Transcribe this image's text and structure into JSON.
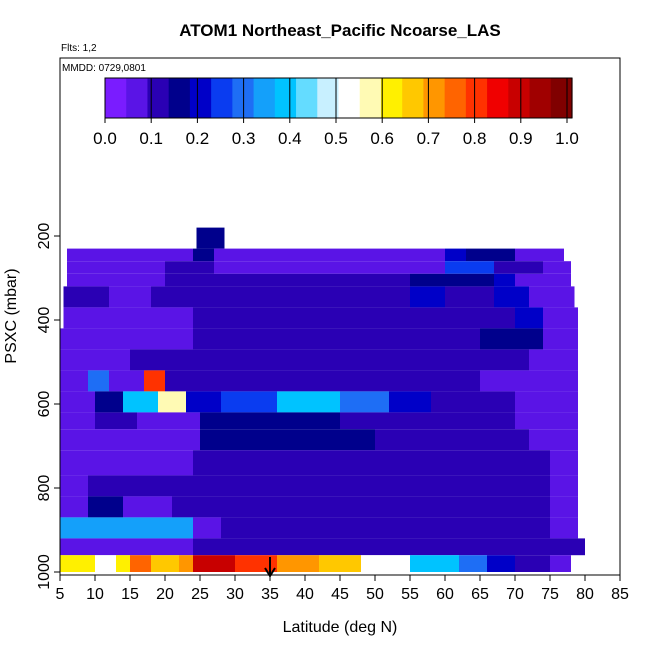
{
  "chart_data": {
    "type": "heatmap",
    "title": "ATOM1 Northeast_Pacific Ncoarse_LAS",
    "annotations": [
      "Flts: 1,2",
      "MMDD: 0729,0801"
    ],
    "xlabel": "Latitude (deg N)",
    "ylabel": "PSXC (mbar)",
    "xlim": [
      5,
      85
    ],
    "ylim": [
      1000,
      100
    ],
    "x_ticks": [
      5,
      10,
      15,
      20,
      25,
      30,
      35,
      40,
      45,
      50,
      55,
      60,
      65,
      70,
      75,
      80,
      85
    ],
    "y_ticks": [
      200,
      400,
      600,
      800,
      1000
    ],
    "colorbar": {
      "ticks": [
        "0.0",
        "0.1",
        "0.2",
        "0.3",
        "0.4",
        "0.5",
        "0.6",
        "0.7",
        "0.8",
        "0.9",
        "1.0"
      ],
      "colors": [
        "#7a1cff",
        "#5a14e6",
        "#2a00b4",
        "#00008c",
        "#0000c8",
        "#0a3cf0",
        "#1e6ef5",
        "#14a0fa",
        "#00c3ff",
        "#64dcff",
        "#c8f0ff",
        "#ffffff",
        "#fffab4",
        "#fff000",
        "#ffc800",
        "#ff9600",
        "#ff6400",
        "#ff3200",
        "#f00000",
        "#c80000",
        "#a00000",
        "#800000"
      ]
    },
    "marker_latitude": 35,
    "bins_pressure": [
      {
        "p_top": 180,
        "p_bottom": 230,
        "segments": [
          [
            24.5,
            28.5,
            0.15
          ]
        ]
      },
      {
        "p_top": 230,
        "p_bottom": 260,
        "segments": [
          [
            6,
            24,
            0.03
          ],
          [
            24,
            27,
            0.12
          ],
          [
            27,
            60,
            0.05
          ],
          [
            60,
            63,
            0.2
          ],
          [
            63,
            70,
            0.15
          ],
          [
            70,
            77,
            0.05
          ]
        ]
      },
      {
        "p_top": 260,
        "p_bottom": 290,
        "segments": [
          [
            6,
            20,
            0.04
          ],
          [
            20,
            27,
            0.1
          ],
          [
            27,
            60,
            0.05
          ],
          [
            60,
            67,
            0.22
          ],
          [
            67,
            74,
            0.1
          ],
          [
            74,
            78,
            0.04
          ]
        ]
      },
      {
        "p_top": 290,
        "p_bottom": 320,
        "segments": [
          [
            6,
            20,
            0.05
          ],
          [
            20,
            35,
            0.1
          ],
          [
            35,
            55,
            0.1
          ],
          [
            55,
            67,
            0.14
          ],
          [
            67,
            70,
            0.2
          ],
          [
            70,
            78,
            0.05
          ]
        ]
      },
      {
        "p_top": 320,
        "p_bottom": 370,
        "segments": [
          [
            5.5,
            12,
            0.08
          ],
          [
            12,
            18,
            0.05
          ],
          [
            18,
            27,
            0.08
          ],
          [
            27,
            55,
            0.09
          ],
          [
            55,
            60,
            0.2
          ],
          [
            60,
            67,
            0.09
          ],
          [
            67,
            72,
            0.2
          ],
          [
            72,
            78.5,
            0.05
          ]
        ]
      },
      {
        "p_top": 370,
        "p_bottom": 420,
        "segments": [
          [
            5.5,
            24,
            0.05
          ],
          [
            24,
            60,
            0.08
          ],
          [
            60,
            70,
            0.1
          ],
          [
            70,
            74,
            0.2
          ],
          [
            74,
            79,
            0.05
          ]
        ]
      },
      {
        "p_top": 420,
        "p_bottom": 470,
        "segments": [
          [
            5,
            24,
            0.04
          ],
          [
            24,
            40,
            0.08
          ],
          [
            40,
            65,
            0.08
          ],
          [
            65,
            74,
            0.12
          ],
          [
            74,
            79,
            0.05
          ]
        ]
      },
      {
        "p_top": 470,
        "p_bottom": 520,
        "segments": [
          [
            5,
            15,
            0.03
          ],
          [
            15,
            25,
            0.09
          ],
          [
            25,
            65,
            0.1
          ],
          [
            65,
            72,
            0.09
          ],
          [
            72,
            79,
            0.04
          ]
        ]
      },
      {
        "p_top": 520,
        "p_bottom": 570,
        "segments": [
          [
            5,
            9,
            0.03
          ],
          [
            9,
            12,
            0.3
          ],
          [
            12,
            17,
            0.05
          ],
          [
            17,
            20,
            0.8
          ],
          [
            20,
            25,
            0.1
          ],
          [
            25,
            65,
            0.09
          ],
          [
            65,
            74,
            0.05
          ],
          [
            74,
            79,
            0.04
          ]
        ]
      },
      {
        "p_top": 570,
        "p_bottom": 620,
        "segments": [
          [
            5,
            10,
            0.05
          ],
          [
            10,
            14,
            0.15
          ],
          [
            14,
            19,
            0.38
          ],
          [
            19,
            23,
            0.55
          ],
          [
            23,
            28,
            0.2
          ],
          [
            28,
            36,
            0.25
          ],
          [
            36,
            45,
            0.38
          ],
          [
            45,
            52,
            0.28
          ],
          [
            52,
            58,
            0.2
          ],
          [
            58,
            70,
            0.1
          ],
          [
            70,
            79,
            0.05
          ]
        ]
      },
      {
        "p_top": 620,
        "p_bottom": 660,
        "segments": [
          [
            5,
            10,
            0.04
          ],
          [
            10,
            16,
            0.1
          ],
          [
            16,
            25,
            0.05
          ],
          [
            25,
            45,
            0.15
          ],
          [
            45,
            60,
            0.09
          ],
          [
            60,
            70,
            0.09
          ],
          [
            70,
            79,
            0.05
          ]
        ]
      },
      {
        "p_top": 660,
        "p_bottom": 710,
        "segments": [
          [
            5,
            25,
            0.04
          ],
          [
            25,
            50,
            0.15
          ],
          [
            50,
            72,
            0.09
          ],
          [
            72,
            79,
            0.05
          ]
        ]
      },
      {
        "p_top": 710,
        "p_bottom": 770,
        "segments": [
          [
            5,
            24,
            0.04
          ],
          [
            24,
            75,
            0.09
          ],
          [
            75,
            79,
            0.05
          ]
        ]
      },
      {
        "p_top": 770,
        "p_bottom": 820,
        "segments": [
          [
            5,
            9,
            0.04
          ],
          [
            9,
            24,
            0.09
          ],
          [
            24,
            75,
            0.09
          ],
          [
            75,
            79,
            0.04
          ]
        ]
      },
      {
        "p_top": 820,
        "p_bottom": 870,
        "segments": [
          [
            5,
            9,
            0.05
          ],
          [
            9,
            14,
            0.14
          ],
          [
            14,
            21,
            0.05
          ],
          [
            21,
            24,
            0.1
          ],
          [
            24,
            75,
            0.09
          ],
          [
            75,
            79,
            0.04
          ]
        ]
      },
      {
        "p_top": 870,
        "p_bottom": 920,
        "segments": [
          [
            5,
            24,
            0.35
          ],
          [
            24,
            28,
            0.06
          ],
          [
            28,
            75,
            0.09
          ],
          [
            75,
            79,
            0.04
          ]
        ]
      },
      {
        "p_top": 920,
        "p_bottom": 960,
        "segments": [
          [
            5,
            24,
            0.05
          ],
          [
            24,
            40,
            0.1
          ],
          [
            40,
            60,
            0.09
          ],
          [
            60,
            80,
            0.1
          ]
        ]
      },
      {
        "p_top": 960,
        "p_bottom": 1000,
        "segments": [
          [
            5,
            10,
            0.6
          ],
          [
            10,
            13,
            0.5
          ],
          [
            13,
            15,
            0.6
          ],
          [
            15,
            18,
            0.75
          ],
          [
            18,
            22,
            0.65
          ],
          [
            22,
            24,
            0.7
          ],
          [
            24,
            30,
            0.9
          ],
          [
            30,
            36,
            0.82
          ],
          [
            36,
            42,
            0.7
          ],
          [
            42,
            48,
            0.65
          ],
          [
            48,
            55,
            0.5
          ],
          [
            55,
            62,
            0.4
          ],
          [
            62,
            66,
            0.3
          ],
          [
            66,
            70,
            0.18
          ],
          [
            70,
            75,
            0.1
          ],
          [
            75,
            78,
            0.05
          ]
        ]
      }
    ]
  }
}
